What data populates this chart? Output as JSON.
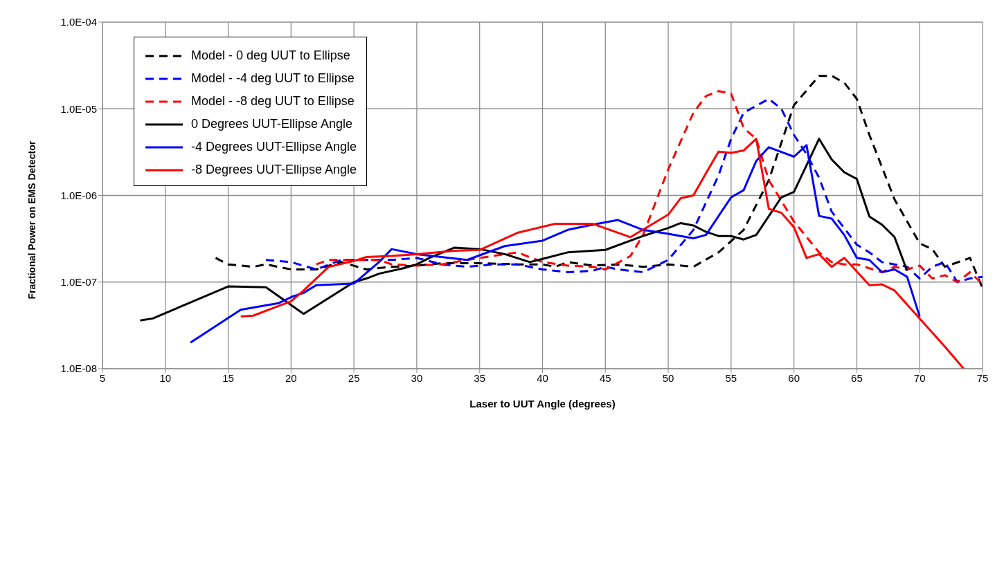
{
  "chart_data": {
    "type": "line",
    "xlabel": "Laser to UUT Angle (degrees)",
    "ylabel": "Fractional Power on EMS Detector",
    "log": "y",
    "grid": true,
    "legend": "top left",
    "marker": "none",
    "xlim": [
      5,
      75
    ],
    "xticks": [
      5,
      10,
      15,
      20,
      25,
      30,
      35,
      40,
      45,
      50,
      55,
      60,
      65,
      70,
      75
    ],
    "ylim": [
      1e-08,
      0.0001
    ],
    "yticks": [
      {
        "value": 1e-08,
        "label": "1.0E-08"
      },
      {
        "value": 1e-07,
        "label": "1.0E-07"
      },
      {
        "value": 1e-06,
        "label": "1.0E-06"
      },
      {
        "value": 1e-05,
        "label": "1.0E-05"
      },
      {
        "value": 0.0001,
        "label": "1.0E-04"
      }
    ],
    "series": [
      {
        "name": "Model - 0 deg UUT to Ellipse",
        "color": "#000000",
        "line_style": "dashed",
        "x": [
          14,
          15,
          17,
          18,
          20,
          22,
          24,
          26,
          28,
          30,
          32,
          35,
          38,
          40,
          41,
          42,
          44,
          46,
          48,
          50,
          52,
          54,
          56,
          58,
          60,
          62,
          63,
          64,
          65,
          66,
          68,
          70,
          71,
          72,
          74,
          75
        ],
        "values": [
          1.9e-07,
          1.6e-07,
          1.5e-07,
          1.6e-07,
          1.4e-07,
          1.4e-07,
          1.7e-07,
          1.4e-07,
          1.5e-07,
          1.55e-07,
          1.65e-07,
          1.65e-07,
          1.6e-07,
          1.6e-07,
          1.5e-07,
          1.7e-07,
          1.55e-07,
          1.6e-07,
          1.5e-07,
          1.6e-07,
          1.5e-07,
          2.2e-07,
          4e-07,
          1.5e-06,
          1.1e-05,
          2.4e-05,
          2.4e-05,
          2e-05,
          1.3e-05,
          5e-06,
          9e-07,
          2.8e-07,
          2.4e-07,
          1.5e-07,
          1.9e-07,
          8.5e-08
        ]
      },
      {
        "name": "Model - -4 deg UUT to Ellipse",
        "color": "#0000ff",
        "line_style": "dashed",
        "x": [
          18,
          20,
          22,
          24,
          26,
          28,
          30,
          32,
          34,
          36,
          38,
          40,
          42,
          44,
          45,
          46,
          48,
          50,
          52,
          54,
          55,
          56,
          58,
          59,
          60,
          61,
          62,
          63,
          65,
          66,
          67,
          68,
          69,
          70,
          71,
          72,
          73,
          74,
          75
        ],
        "values": [
          1.8e-07,
          1.7e-07,
          1.4e-07,
          1.8e-07,
          1.8e-07,
          1.8e-07,
          1.9e-07,
          1.6e-07,
          1.5e-07,
          1.6e-07,
          1.6e-07,
          1.4e-07,
          1.3e-07,
          1.35e-07,
          1.5e-07,
          1.4e-07,
          1.3e-07,
          1.8e-07,
          4e-07,
          1.7e-06,
          4.5e-06,
          9e-06,
          1.3e-05,
          1e-05,
          5e-06,
          3e-06,
          1.6e-06,
          6.5e-07,
          2.7e-07,
          2.2e-07,
          1.7e-07,
          1.6e-07,
          1.5e-07,
          1.1e-07,
          1.5e-07,
          1.7e-07,
          1e-07,
          1.1e-07,
          1.15e-07
        ]
      },
      {
        "name": "Model - -8 deg UUT to Ellipse",
        "color": "#ff0000",
        "line_style": "dashed",
        "x": [
          22,
          23,
          25,
          27,
          28,
          30,
          32,
          34,
          36,
          38,
          40,
          42,
          44,
          45,
          47,
          48,
          50,
          52,
          53,
          54,
          55,
          56,
          57,
          58,
          60,
          62,
          63,
          64,
          65,
          67,
          68,
          69,
          70,
          71,
          72,
          73,
          74,
          75
        ],
        "values": [
          1.6e-07,
          1.8e-07,
          1.8e-07,
          1.8e-07,
          1.6e-07,
          1.55e-07,
          1.6e-07,
          1.8e-07,
          2e-07,
          2.2e-07,
          1.7e-07,
          1.55e-07,
          1.5e-07,
          1.4e-07,
          2e-07,
          3.5e-07,
          2e-06,
          9e-06,
          1.4e-05,
          1.6e-05,
          1.5e-05,
          6e-06,
          4.5e-06,
          1.5e-06,
          5e-07,
          2.2e-07,
          1.7e-07,
          1.6e-07,
          1.6e-07,
          1.3e-07,
          1.5e-07,
          1.4e-07,
          1.55e-07,
          1.1e-07,
          1.2e-07,
          1e-07,
          1.3e-07,
          9.5e-08
        ]
      },
      {
        "name": "0 Degrees UUT-Ellipse Angle",
        "color": "#000000",
        "line_style": "solid",
        "x": [
          8,
          9,
          15,
          18,
          21,
          25,
          26,
          27,
          29,
          30,
          31,
          33,
          35,
          37,
          39,
          40,
          42,
          45,
          48,
          50,
          51,
          52,
          53,
          54,
          55,
          56,
          57,
          59,
          60,
          62,
          63,
          64,
          65,
          66,
          67,
          68,
          69
        ],
        "values": [
          3.6e-08,
          3.8e-08,
          8.9e-08,
          8.7e-08,
          4.3e-08,
          1e-07,
          1.1e-07,
          1.25e-07,
          1.45e-07,
          1.6e-07,
          1.9e-07,
          2.5e-07,
          2.4e-07,
          2.1e-07,
          1.7e-07,
          1.85e-07,
          2.2e-07,
          2.35e-07,
          3.4e-07,
          4.2e-07,
          4.8e-07,
          4.5e-07,
          3.8e-07,
          3.4e-07,
          3.4e-07,
          3.1e-07,
          3.5e-07,
          9.5e-07,
          1.1e-06,
          4.5e-06,
          2.6e-06,
          1.85e-06,
          1.55e-06,
          5.7e-07,
          4.6e-07,
          3.3e-07,
          1.35e-07
        ]
      },
      {
        "name": "-4 Degrees UUT-Ellipse Angle",
        "color": "#0000ff",
        "line_style": "solid",
        "x": [
          12,
          16,
          19,
          20,
          21,
          22,
          25,
          27,
          28,
          30,
          34,
          37,
          40,
          42,
          44,
          46,
          48,
          50,
          52,
          53,
          55,
          56,
          57,
          58,
          60,
          61,
          62,
          63,
          64,
          65,
          66,
          67,
          68,
          69,
          70
        ],
        "values": [
          2e-08,
          4.8e-08,
          5.7e-08,
          6.7e-08,
          7.5e-08,
          9.2e-08,
          9.6e-08,
          1.7e-07,
          2.4e-07,
          2.1e-07,
          1.8e-07,
          2.6e-07,
          3e-07,
          4e-07,
          4.6e-07,
          5.2e-07,
          4e-07,
          3.6e-07,
          3.2e-07,
          3.5e-07,
          9.5e-07,
          1.15e-06,
          2.5e-06,
          3.6e-06,
          2.8e-06,
          3.8e-06,
          5.8e-07,
          5.4e-07,
          3.5e-07,
          1.9e-07,
          1.8e-07,
          1.3e-07,
          1.4e-07,
          1.15e-07,
          4e-08
        ]
      },
      {
        "name": "-8 Degrees UUT-Ellipse Angle",
        "color": "#ff0000",
        "line_style": "solid",
        "x": [
          16,
          17,
          19,
          20,
          21,
          23,
          25,
          26,
          28,
          30,
          33,
          35,
          38,
          41,
          44,
          47,
          50,
          51,
          52,
          53,
          54,
          55,
          56,
          57,
          58,
          59,
          60,
          61,
          62,
          63,
          64,
          66,
          67,
          68,
          70,
          72,
          73.5
        ],
        "values": [
          4e-08,
          4.1e-08,
          5.3e-08,
          6e-08,
          8e-08,
          1.5e-07,
          1.75e-07,
          1.95e-07,
          2e-07,
          2.1e-07,
          2.3e-07,
          2.35e-07,
          3.7e-07,
          4.7e-07,
          4.7e-07,
          3.3e-07,
          6e-07,
          9.3e-07,
          1e-06,
          1.8e-06,
          3.2e-06,
          3.1e-06,
          3.3e-06,
          4.5e-06,
          7e-07,
          6.3e-07,
          4.3e-07,
          1.9e-07,
          2.1e-07,
          1.5e-07,
          1.9e-07,
          9.2e-08,
          9.4e-08,
          8e-08,
          3.8e-08,
          1.8e-08,
          1e-08
        ]
      }
    ]
  }
}
